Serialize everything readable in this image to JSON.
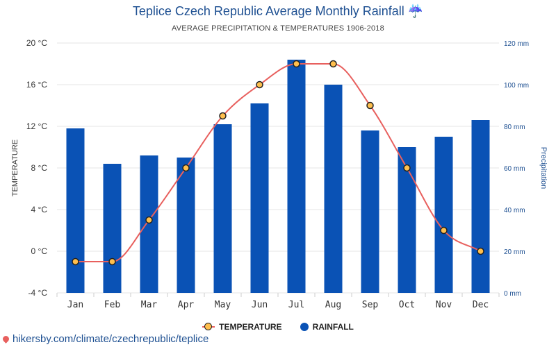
{
  "title": "Teplice Czech Republic Average Monthly Rainfall ☔",
  "subtitle": "AVERAGE PRECIPITATION & TEMPERATURES 1906-2018",
  "source": "hikersby.com/climate/czechrepublic/teplice",
  "chart_data": {
    "type": "bar",
    "categories": [
      "Jan",
      "Feb",
      "Mar",
      "Apr",
      "May",
      "Jun",
      "Jul",
      "Aug",
      "Sep",
      "Oct",
      "Nov",
      "Dec"
    ],
    "series": [
      {
        "name": "TEMPERATURE",
        "type": "line",
        "axis": "left",
        "values": [
          -1,
          -1,
          3,
          8,
          13,
          16,
          18,
          18,
          14,
          8,
          2,
          0
        ],
        "color": "#e8605e",
        "marker_color": "#ffbf4d"
      },
      {
        "name": "RAINFALL",
        "type": "bar",
        "axis": "right",
        "values": [
          79,
          62,
          66,
          65,
          81,
          91,
          112,
          100,
          78,
          70,
          75,
          83
        ],
        "color": "#0a52b5"
      }
    ],
    "y_left": {
      "label": "TEMPERATURE",
      "ylim": [
        -4,
        20
      ],
      "ticks": [
        "-4 °C",
        "0 °C",
        "4 °C",
        "8 °C",
        "12 °C",
        "16 °C",
        "20 °C"
      ]
    },
    "y_right": {
      "label": "Precipitation",
      "ylim": [
        0,
        120
      ],
      "ticks": [
        "0 mm",
        "20 mm",
        "40 mm",
        "60 mm",
        "80 mm",
        "100 mm",
        "120 mm"
      ]
    },
    "grid": true,
    "legend": "bottom"
  }
}
